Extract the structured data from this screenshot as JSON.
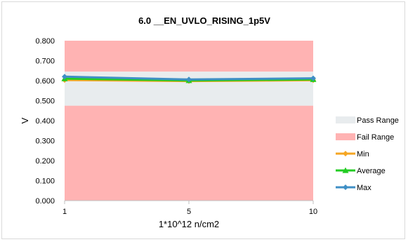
{
  "chart_data": {
    "type": "line",
    "title": "6.0 __EN_UVLO_RISING_1p5V",
    "xlabel": "1*10^12 n/cm2",
    "ylabel": "V",
    "x": [
      1,
      5,
      10
    ],
    "x_tick_labels": [
      "1",
      "5",
      "10"
    ],
    "ylim": [
      0,
      0.8
    ],
    "y_ticks": [
      "0.000",
      "0.100",
      "0.200",
      "0.300",
      "0.400",
      "0.500",
      "0.600",
      "0.700",
      "0.800"
    ],
    "pass_range": [
      0.475,
      0.645
    ],
    "fail_range_low": [
      0,
      0.475
    ],
    "fail_range_high": [
      0.645,
      0.8
    ],
    "series": [
      {
        "name": "Min",
        "values": [
          0.603,
          0.598,
          0.602
        ],
        "color": "#f5a623",
        "marker": "diamond"
      },
      {
        "name": "Average",
        "values": [
          0.61,
          0.601,
          0.606
        ],
        "color": "#22cc22",
        "marker": "triangle"
      },
      {
        "name": "Max",
        "values": [
          0.62,
          0.606,
          0.612
        ],
        "color": "#3f8fc5",
        "marker": "diamond"
      }
    ],
    "legend": {
      "placement": "right",
      "entries": [
        "Pass Range",
        "Fail Range",
        "Min",
        "Average",
        "Max"
      ]
    },
    "colors": {
      "pass": "#e8ecee",
      "fail": "#ffb3b3"
    }
  }
}
